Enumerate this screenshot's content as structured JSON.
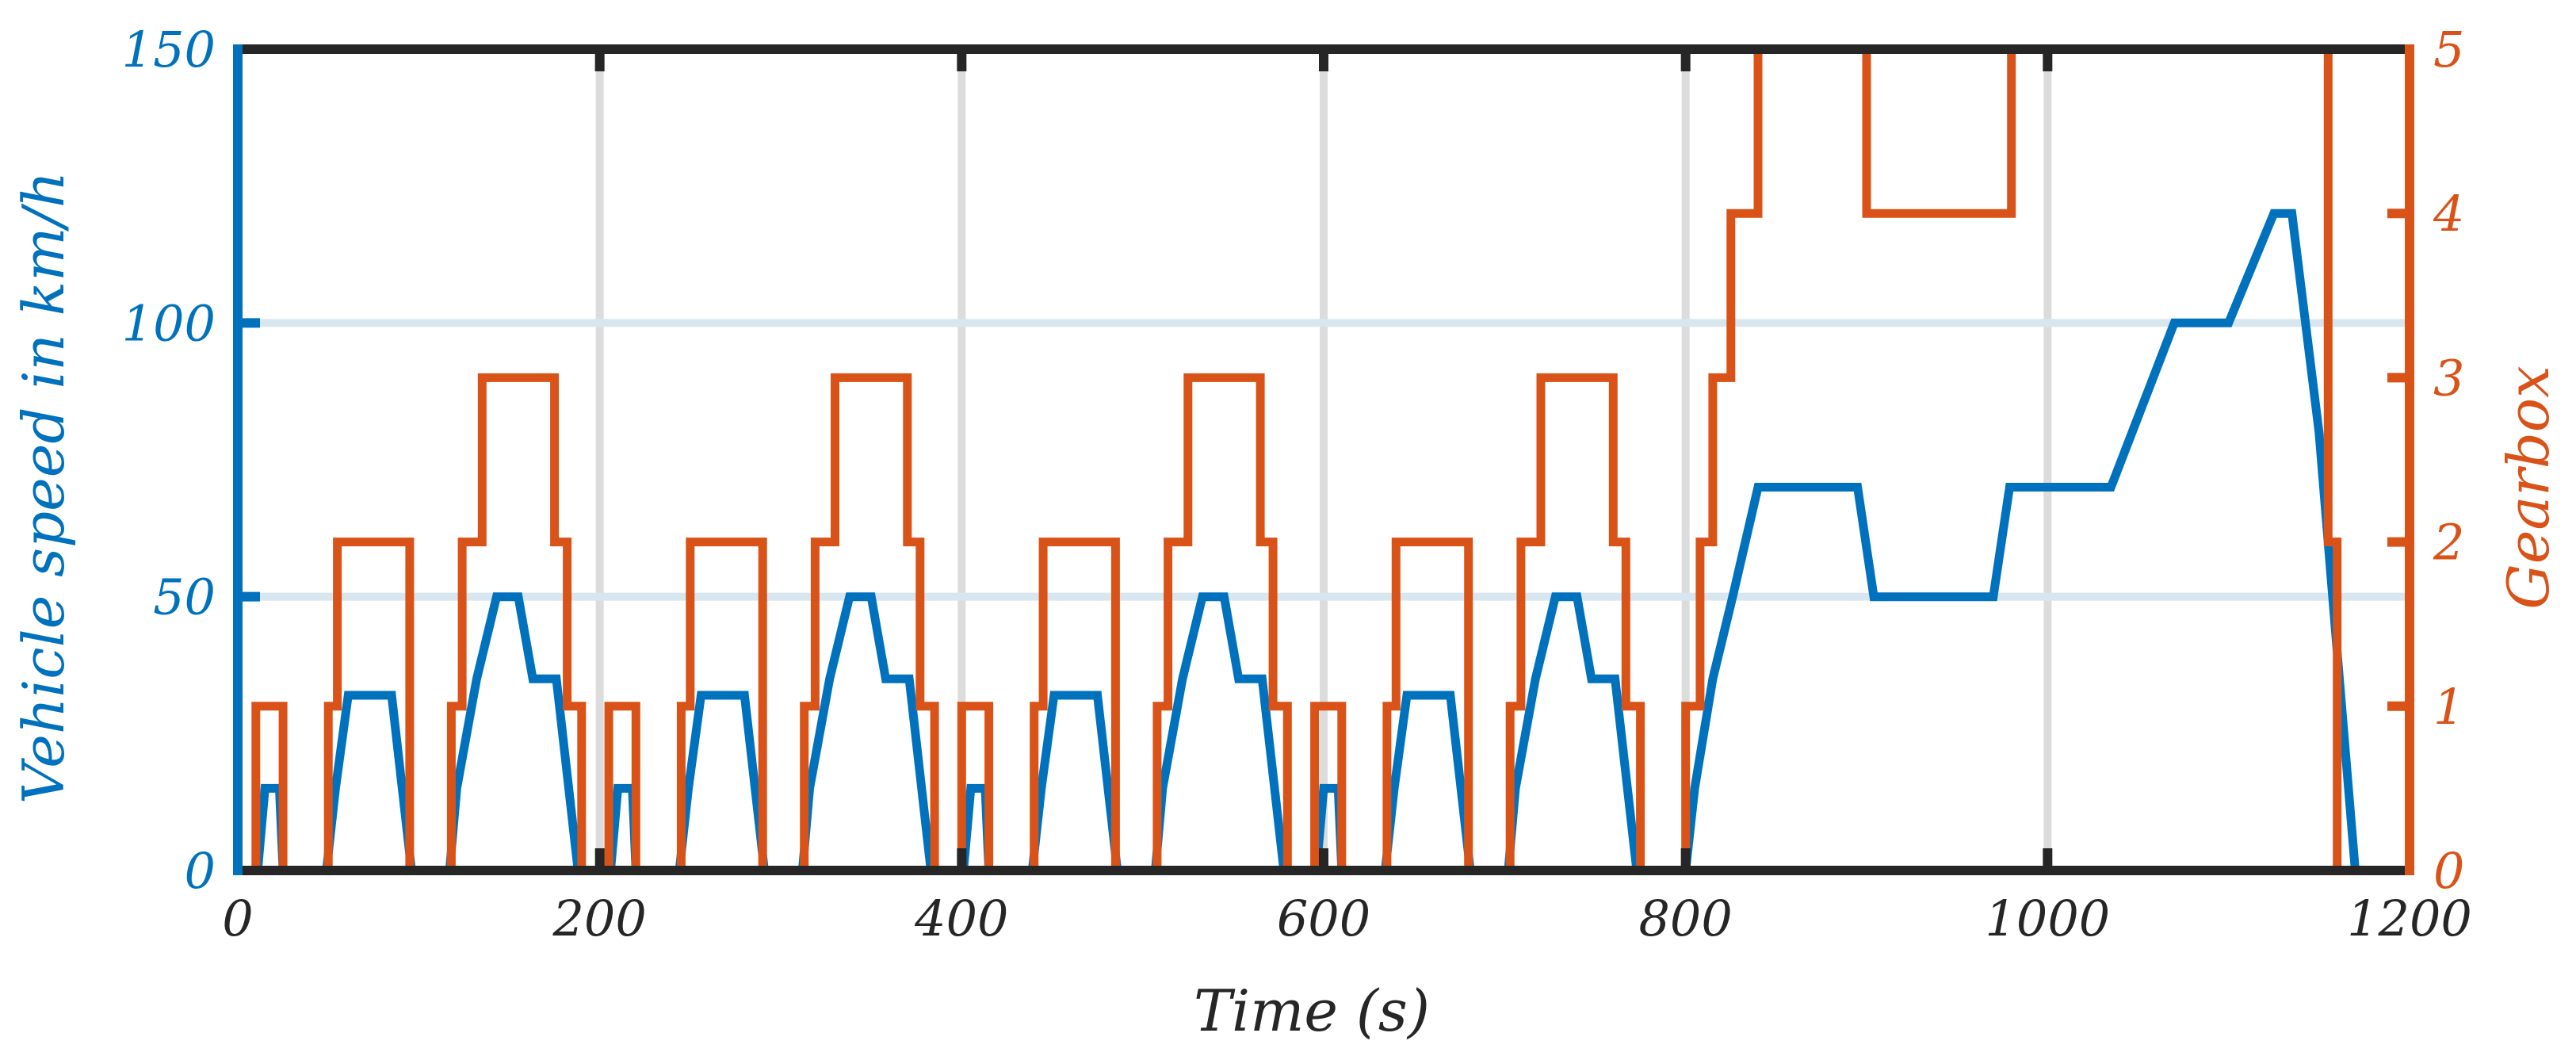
{
  "chart_data": {
    "type": "line",
    "title": "",
    "xlabel": "Time (s)",
    "ylabel_left": "Vehicle speed in km/h",
    "ylabel_right": "Gearbox",
    "xlim": [
      0,
      1200
    ],
    "ylim_left": [
      0,
      150
    ],
    "ylim_right": [
      0,
      5
    ],
    "x_ticks": [
      0,
      200,
      400,
      600,
      800,
      1000,
      1200
    ],
    "y_ticks_left": [
      0,
      50,
      100,
      150
    ],
    "y_ticks_right": [
      0,
      1,
      2,
      3,
      4,
      5
    ],
    "grid": true,
    "colors": {
      "speed": "#0072BD",
      "gear": "#D95319",
      "axis": "#262626",
      "grid_v": "#dcdcdc",
      "grid_h": "#d8e6f0"
    },
    "series": [
      {
        "name": "Vehicle speed",
        "axis": "left",
        "color": "#0072BD",
        "x": [
          0,
          11,
          15,
          23,
          25,
          28,
          49,
          54,
          61,
          64,
          85,
          96,
          112,
          117,
          121,
          132,
          143,
          155,
          163,
          176,
          188,
          195,
          195,
          206,
          210,
          218,
          220,
          223,
          244,
          249,
          256,
          259,
          280,
          291,
          307,
          312,
          316,
          327,
          338,
          350,
          358,
          371,
          383,
          390,
          390,
          401,
          405,
          413,
          415,
          418,
          439,
          444,
          451,
          454,
          475,
          486,
          502,
          507,
          511,
          522,
          533,
          545,
          553,
          566,
          578,
          585,
          585,
          596,
          600,
          608,
          610,
          613,
          634,
          639,
          646,
          649,
          670,
          681,
          697,
          702,
          706,
          717,
          728,
          740,
          748,
          761,
          773,
          780,
          780,
          800,
          805,
          815,
          826,
          840,
          860,
          895,
          904,
          970,
          979,
          1035,
          1070,
          1100,
          1125,
          1135,
          1150,
          1170,
          1200
        ],
        "y": [
          0,
          0,
          15,
          15,
          0,
          0,
          0,
          15,
          32,
          32,
          32,
          0,
          0,
          0,
          15,
          35,
          50,
          50,
          35,
          35,
          0,
          0,
          0,
          0,
          15,
          15,
          0,
          0,
          0,
          15,
          32,
          32,
          32,
          0,
          0,
          0,
          15,
          35,
          50,
          50,
          35,
          35,
          0,
          0,
          0,
          0,
          15,
          15,
          0,
          0,
          0,
          15,
          32,
          32,
          32,
          0,
          0,
          0,
          15,
          35,
          50,
          50,
          35,
          35,
          0,
          0,
          0,
          0,
          15,
          15,
          0,
          0,
          0,
          15,
          32,
          32,
          32,
          0,
          0,
          0,
          15,
          35,
          50,
          50,
          35,
          35,
          0,
          0,
          0,
          0,
          15,
          35,
          50,
          70,
          70,
          70,
          50,
          50,
          70,
          70,
          100,
          100,
          120,
          120,
          80,
          0,
          0
        ]
      },
      {
        "name": "Gearbox",
        "axis": "right",
        "color": "#D95319",
        "x": [
          0,
          10,
          10,
          25,
          25,
          50,
          50,
          55,
          55,
          95,
          95,
          118,
          118,
          124,
          124,
          135,
          135,
          175,
          175,
          182,
          182,
          190,
          190,
          195,
          195,
          205,
          205,
          220,
          220,
          245,
          245,
          250,
          250,
          290,
          290,
          313,
          313,
          319,
          319,
          330,
          330,
          370,
          370,
          377,
          377,
          385,
          385,
          390,
          390,
          400,
          400,
          415,
          415,
          440,
          440,
          445,
          445,
          485,
          485,
          508,
          508,
          514,
          514,
          525,
          525,
          565,
          565,
          572,
          572,
          580,
          580,
          585,
          585,
          595,
          595,
          610,
          610,
          635,
          635,
          640,
          640,
          680,
          680,
          703,
          703,
          709,
          709,
          720,
          720,
          760,
          760,
          767,
          767,
          775,
          775,
          780,
          780,
          800,
          800,
          808,
          808,
          815,
          815,
          825,
          825,
          840,
          840,
          900,
          900,
          980,
          980,
          1155,
          1155,
          1160,
          1160,
          1200
        ],
        "y": [
          0,
          0,
          1,
          1,
          0,
          0,
          1,
          1,
          2,
          2,
          0,
          0,
          1,
          1,
          2,
          2,
          3,
          3,
          2,
          2,
          1,
          1,
          0,
          0,
          0,
          0,
          1,
          1,
          0,
          0,
          1,
          1,
          2,
          2,
          0,
          0,
          1,
          1,
          2,
          2,
          3,
          3,
          2,
          2,
          1,
          1,
          0,
          0,
          0,
          0,
          1,
          1,
          0,
          0,
          1,
          1,
          2,
          2,
          0,
          0,
          1,
          1,
          2,
          2,
          3,
          3,
          2,
          2,
          1,
          1,
          0,
          0,
          0,
          0,
          1,
          1,
          0,
          0,
          1,
          1,
          2,
          2,
          0,
          0,
          1,
          1,
          2,
          2,
          3,
          3,
          2,
          2,
          1,
          1,
          0,
          0,
          0,
          0,
          1,
          1,
          2,
          2,
          3,
          3,
          4,
          4,
          5,
          5,
          4,
          4,
          5,
          5,
          2,
          2,
          0,
          0
        ]
      }
    ]
  }
}
